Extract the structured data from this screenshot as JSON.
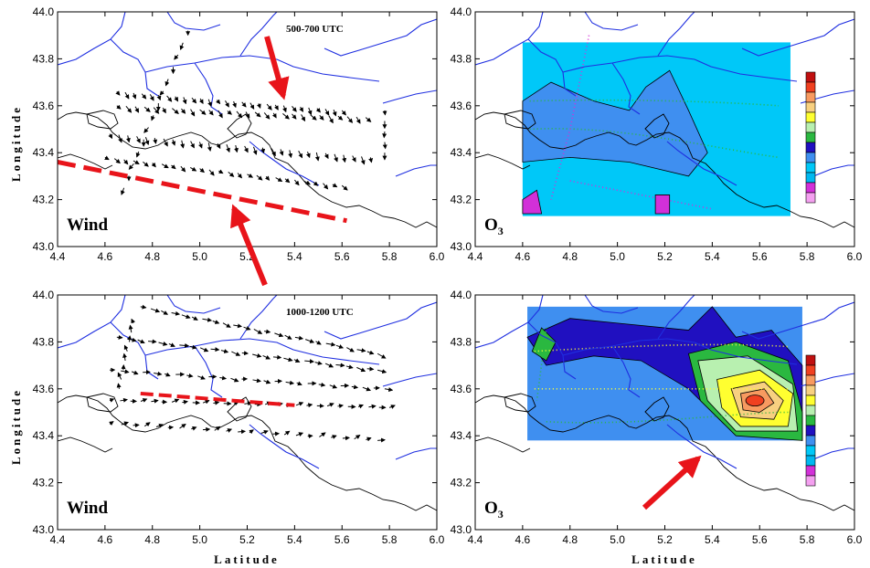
{
  "axes": {
    "xlabel": "Latitude",
    "ylabel": "Longitude",
    "xticks": [
      "4.4",
      "4.6",
      "4.8",
      "5.0",
      "5.2",
      "5.4",
      "5.6",
      "5.8",
      "6.0"
    ],
    "yticks": [
      "43.0",
      "43.2",
      "43.4",
      "43.6",
      "43.8",
      "44.0"
    ],
    "xlim": [
      4.4,
      6.0
    ],
    "ylim": [
      43.0,
      44.0
    ]
  },
  "panels": [
    {
      "label": "Wind",
      "time": "500-700 UTC",
      "type": "wind"
    },
    {
      "label": "O3",
      "type": "ozone"
    },
    {
      "label": "Wind",
      "time": "1000-1200 UTC",
      "type": "wind"
    },
    {
      "label": "O3",
      "type": "ozone"
    }
  ],
  "colorbar": [
    "#f4a0f0",
    "#d230d8",
    "#00b8f0",
    "#00c8f8",
    "#3f8ff0",
    "#2010c0",
    "#2ab840",
    "#b8f0b0",
    "#ffff30",
    "#f8d080",
    "#f89a60",
    "#f04020",
    "#c01010"
  ],
  "colors": {
    "land": "#ffffff",
    "river": "#1f2fe0",
    "annotation_arrow": "#e8141a",
    "front_line": "#e8141a"
  }
}
